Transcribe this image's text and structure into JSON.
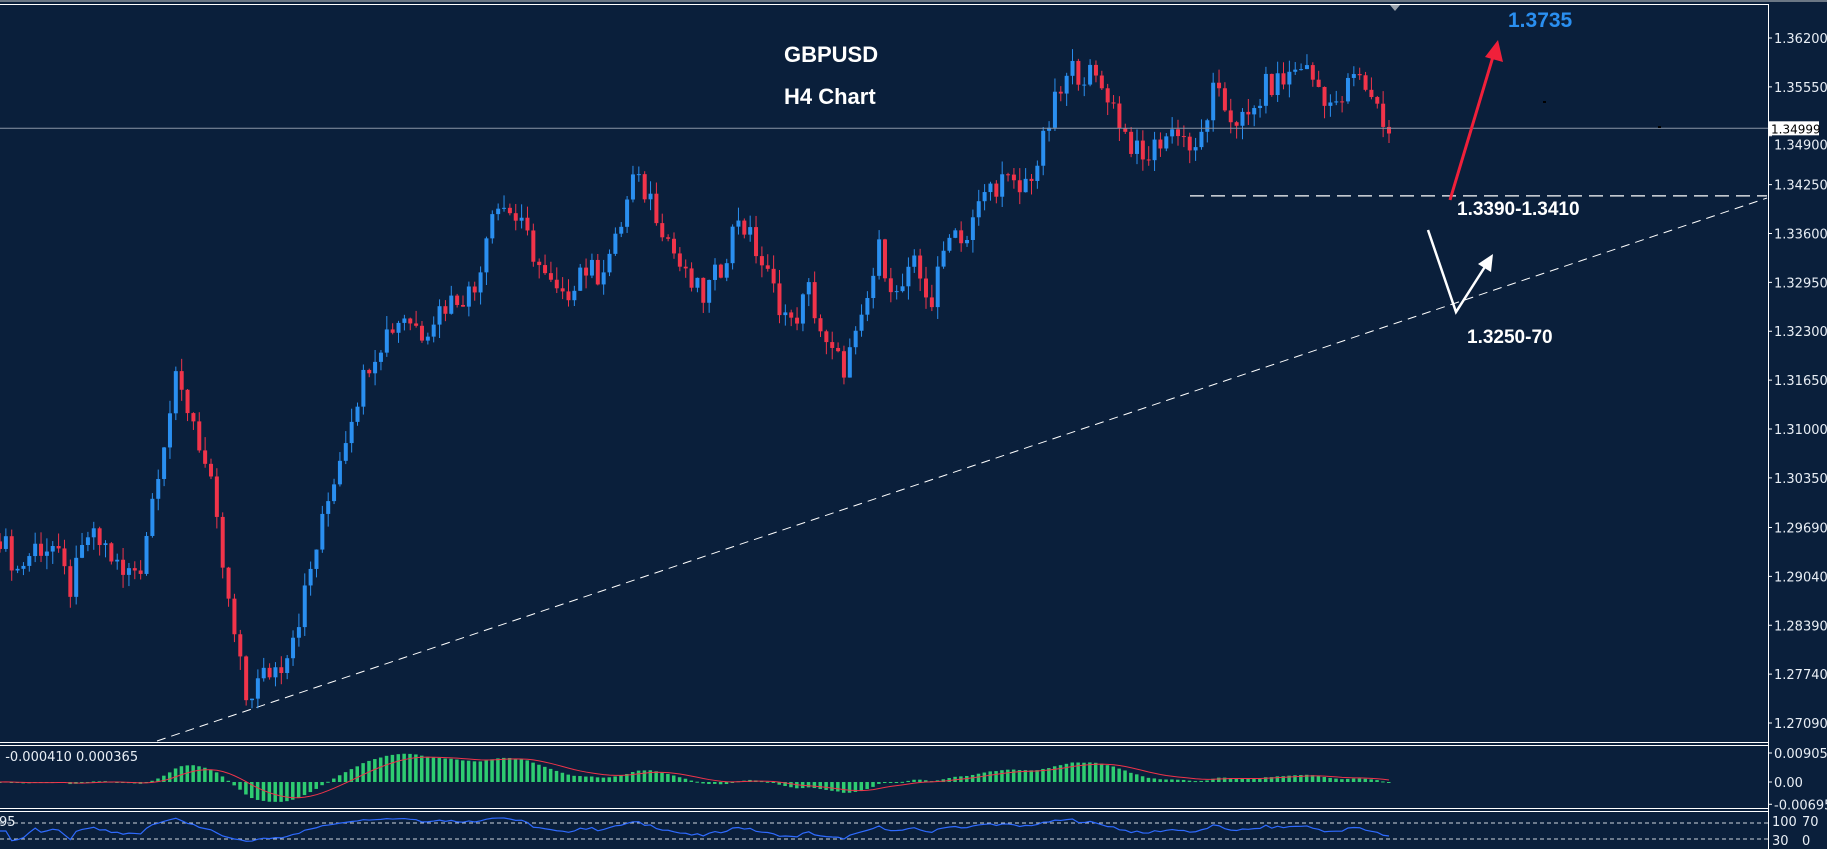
{
  "chart_data": {
    "type": "candlestick",
    "title": "GBPUSD",
    "subtitle": "H4 Chart",
    "symbol": "GBPUSD",
    "timeframe": "H4",
    "close_path": [
      1.2958,
      1.2912,
      1.2943,
      1.2943,
      1.2888,
      1.2958,
      1.2943,
      1.2904,
      1.292,
      1.3051,
      1.316,
      1.3113,
      1.302,
      1.2865,
      1.2741,
      1.2772,
      1.2788,
      1.285,
      1.2943,
      1.3036,
      1.3121,
      1.3191,
      1.3229,
      1.3253,
      1.3229,
      1.326,
      1.3276,
      1.3284,
      1.34,
      1.3392,
      1.3353,
      1.3299,
      1.3268,
      1.3315,
      1.3307,
      1.3346,
      1.3431,
      1.3408,
      1.3353,
      1.3299,
      1.3276,
      1.3315,
      1.3384,
      1.3338,
      1.3284,
      1.3237,
      1.3284,
      1.3206,
      1.3183,
      1.3237,
      1.3338,
      1.3276,
      1.3315,
      1.3268,
      1.3369,
      1.3353,
      1.3415,
      1.3431,
      1.3415,
      1.3454,
      1.3532,
      1.3578,
      1.357,
      1.3547,
      1.3493,
      1.3454,
      1.3485,
      1.3501,
      1.3462,
      1.3547,
      1.3516,
      1.3508,
      1.3555,
      1.3563,
      1.3586,
      1.3555,
      1.3524,
      1.357,
      1.3547,
      1.3493
    ],
    "ylim": [
      1.268,
      1.366
    ],
    "y_ticks": [
      "1.36200",
      "1.35550",
      "1.34900",
      "1.34250",
      "1.33600",
      "1.32950",
      "1.32300",
      "1.31650",
      "1.31000",
      "1.30350",
      "1.29690",
      "1.29040",
      "1.28390",
      "1.27740",
      "1.27090"
    ],
    "current_price": "1.34999",
    "current_price_value": 1.34999,
    "colors": {
      "background": "#0a1f3b",
      "bull": "#2a8ff0",
      "bear": "#f0344a",
      "macd_hist": "#2ecc71",
      "macd_signal": "#f0344a",
      "rsi": "#2f6bff",
      "grid_text": "#e8eef5"
    },
    "annotations": {
      "target": {
        "text": "1.3735",
        "color": "#2a8ff0"
      },
      "support_zone": {
        "text": "1.3390-1.3410",
        "level": 1.341
      },
      "trendline_zone": {
        "text": "1.3250-70"
      },
      "trendline": {
        "style": "dashed",
        "color": "#ffffff"
      }
    },
    "macd": {
      "label": ") -0.000410 0.000365",
      "ticks": [
        {
          "label": "0.00905",
          "value": 0.00905
        },
        {
          "label": "0.00",
          "value": 0
        },
        {
          "label": "-0.006951",
          "value": -0.006951
        }
      ]
    },
    "rsi": {
      "label": "95",
      "levels": [
        70,
        30
      ],
      "ticks": [
        {
          "label": "100",
          "value": 100
        },
        {
          "label": "70",
          "value": 70
        },
        {
          "label": "30",
          "value": 30
        },
        {
          "label": "0",
          "value": 0
        }
      ]
    }
  }
}
